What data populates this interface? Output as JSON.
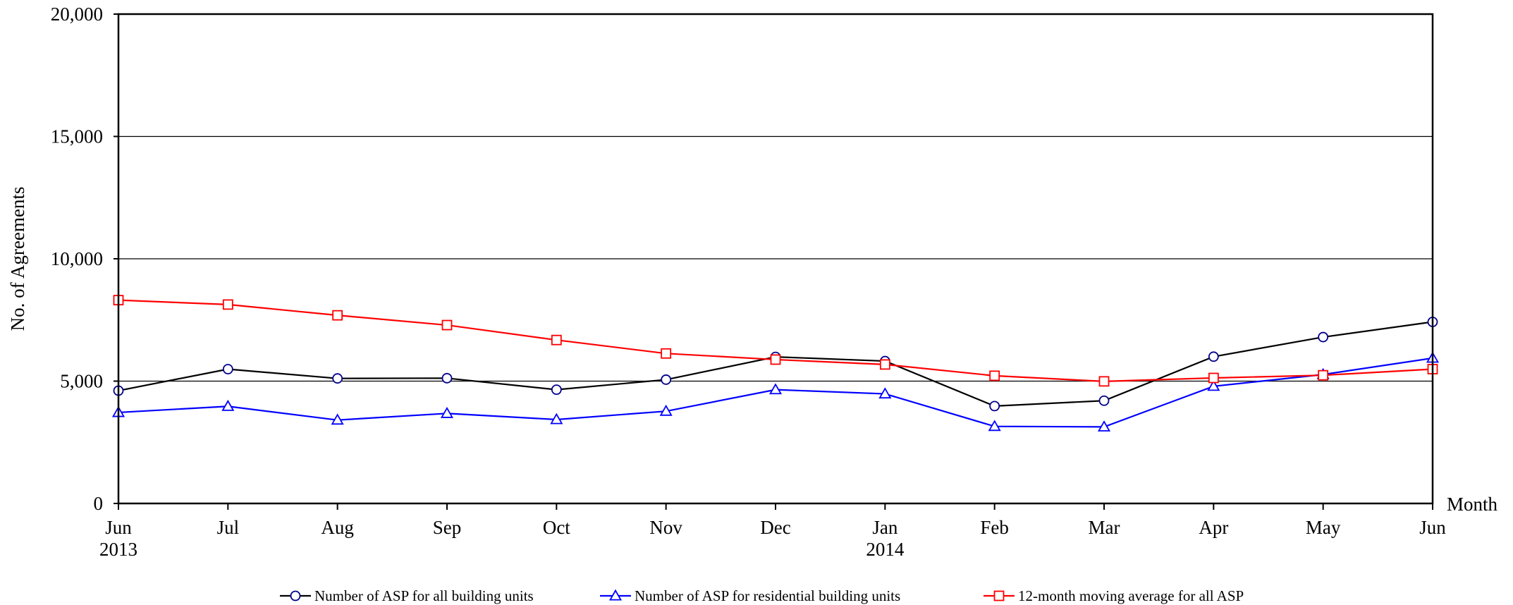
{
  "chart_data": {
    "type": "line",
    "ylabel": "No. of Agreements",
    "xlabel": "Month",
    "ylim": [
      0,
      20000
    ],
    "yticks": [
      0,
      5000,
      10000,
      15000,
      20000
    ],
    "ytick_labels": [
      "0",
      "5,000",
      "10,000",
      "15,000",
      "20,000"
    ],
    "grid": "horizontal",
    "legend_position": "bottom",
    "categories": [
      "Jun",
      "Jul",
      "Aug",
      "Sep",
      "Oct",
      "Nov",
      "Dec",
      "Jan",
      "Feb",
      "Mar",
      "Apr",
      "May",
      "Jun"
    ],
    "year_labels": [
      {
        "index": 0,
        "text": "2013"
      },
      {
        "index": 7,
        "text": "2014"
      }
    ],
    "series": [
      {
        "name": "Number of ASP for all building units",
        "color": "#000000",
        "line_color": "#000000",
        "marker": "circle",
        "marker_color": "#00008b",
        "values": [
          4610,
          5490,
          5110,
          5120,
          4650,
          5060,
          5990,
          5820,
          3980,
          4200,
          6000,
          6800,
          7420
        ]
      },
      {
        "name": "Number of ASP for residential building units",
        "color": "#0000ff",
        "line_color": "#0000ff",
        "marker": "triangle",
        "marker_color": "#0000ff",
        "values": [
          3720,
          3970,
          3410,
          3680,
          3430,
          3770,
          4650,
          4480,
          3150,
          3130,
          4790,
          5270,
          5940
        ]
      },
      {
        "name": "12-month moving average for all ASP",
        "color": "#ff0000",
        "line_color": "#ff0000",
        "marker": "square",
        "marker_color": "#ff0000",
        "values": [
          8310,
          8130,
          7690,
          7290,
          6680,
          6130,
          5880,
          5680,
          5220,
          4990,
          5130,
          5240,
          5490
        ]
      }
    ]
  }
}
